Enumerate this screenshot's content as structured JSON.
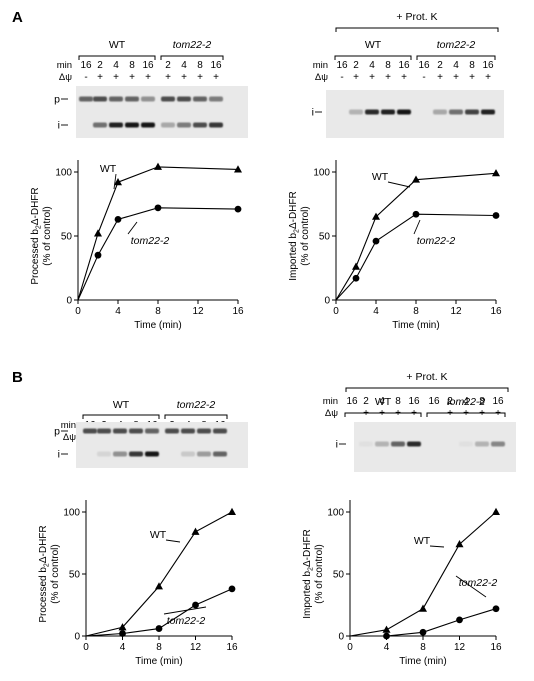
{
  "figure": {
    "panels": [
      {
        "letter": "A",
        "blots": [
          {
            "prot_k_label": "",
            "bands": [
              "p",
              "i"
            ],
            "row_labels": [
              "min",
              "Δψ"
            ],
            "groups": [
              {
                "label": "WT",
                "italic": false,
                "min": [
                  "16",
                  "2",
                  "4",
                  "8",
                  "16"
                ],
                "dpsi": [
                  "-",
                  "+",
                  "+",
                  "+",
                  "+"
                ]
              },
              {
                "label": "tom22-2",
                "italic": true,
                "min": [
                  "2",
                  "4",
                  "8",
                  "16"
                ],
                "dpsi": [
                  "+",
                  "+",
                  "+",
                  "+"
                ]
              }
            ],
            "band_p": [
              0.6,
              0.7,
              0.6,
              0.6,
              0.4,
              0.7,
              0.7,
              0.6,
              0.5
            ],
            "band_i": [
              0,
              0.55,
              0.9,
              0.95,
              0.95,
              0.3,
              0.5,
              0.7,
              0.8
            ]
          },
          {
            "prot_k_label": "+ Prot. K",
            "bands": [
              "i"
            ],
            "row_labels": [
              "min",
              "Δψ"
            ],
            "groups": [
              {
                "label": "WT",
                "italic": false,
                "min": [
                  "16",
                  "2",
                  "4",
                  "8",
                  "16"
                ],
                "dpsi": [
                  "-",
                  "+",
                  "+",
                  "+",
                  "+"
                ]
              },
              {
                "label": "tom22-2",
                "italic": true,
                "min": [
                  "16",
                  "2",
                  "4",
                  "8",
                  "16"
                ],
                "dpsi": [
                  "-",
                  "+",
                  "+",
                  "+",
                  "+"
                ]
              }
            ],
            "band_p": [],
            "band_i": [
              0,
              0.25,
              0.85,
              0.9,
              0.95,
              0,
              0.3,
              0.55,
              0.75,
              0.9
            ]
          }
        ],
        "charts": [
          {
            "ylabel_pre": "Processed b",
            "ylabel_sub": "2",
            "ylabel_post": "Δ-DHFR",
            "ylabel2": "(% of control)",
            "xlabel": "Time (min)"
          },
          {
            "ylabel_pre": "Imported b",
            "ylabel_sub": "2",
            "ylabel_post": "Δ-DHFR",
            "ylabel2": "(% of control)",
            "xlabel": "Time (min)"
          }
        ]
      },
      {
        "letter": "B",
        "blots": [
          {
            "prot_k_label": "",
            "bands": [
              "p",
              "i"
            ],
            "row_labels": [
              "min",
              "Δψ"
            ],
            "groups": [
              {
                "label": "WT",
                "italic": false,
                "min": [
                  "16",
                  "2",
                  "4",
                  "8",
                  "16"
                ],
                "dpsi": [
                  "-",
                  "+",
                  "+",
                  "+",
                  "+"
                ]
              },
              {
                "label": "tom22-2",
                "italic": true,
                "min": [
                  "2",
                  "4",
                  "8",
                  "16"
                ],
                "dpsi": [
                  "+",
                  "+",
                  "+",
                  "+"
                ]
              }
            ],
            "band_p": [
              0.7,
              0.7,
              0.7,
              0.7,
              0.6,
              0.7,
              0.7,
              0.7,
              0.7
            ],
            "band_i": [
              0,
              0.1,
              0.4,
              0.8,
              0.95,
              0,
              0.15,
              0.35,
              0.6
            ]
          },
          {
            "prot_k_label": "+ Prot. K",
            "bands": [
              "i"
            ],
            "row_labels": [
              "min",
              "Δψ"
            ],
            "groups": [
              {
                "label": "WT",
                "italic": false,
                "min": [
                  "16",
                  "2",
                  "4",
                  "8",
                  "16"
                ],
                "dpsi": [
                  "-",
                  "+",
                  "+",
                  "+",
                  "+"
                ]
              },
              {
                "label": "tom22-2",
                "italic": true,
                "min": [
                  "16",
                  "2",
                  "4",
                  "8",
                  "16"
                ],
                "dpsi": [
                  "-",
                  "+",
                  "+",
                  "+",
                  "+"
                ]
              }
            ],
            "band_p": [],
            "band_i": [
              0,
              0.05,
              0.25,
              0.6,
              0.85,
              0,
              0,
              0.05,
              0.25,
              0.45
            ]
          }
        ],
        "charts": [
          {
            "ylabel_pre": "Processed b",
            "ylabel_sub": "2",
            "ylabel_post": "Δ-DHFR",
            "ylabel2": "(% of control)",
            "xlabel": "Time (min)"
          },
          {
            "ylabel_pre": "Imported b",
            "ylabel_sub": "2",
            "ylabel_post": "Δ-DHFR",
            "ylabel2": "(% of control)",
            "xlabel": "Time (min)"
          }
        ]
      }
    ]
  },
  "chart_data": [
    {
      "type": "line",
      "panel": "A",
      "xlabel": "Time (min)",
      "ylabel": "Processed b2Δ-DHFR (% of control)",
      "xlim": [
        0,
        16
      ],
      "ylim": [
        0,
        100
      ],
      "xticks": [
        0,
        4,
        8,
        12,
        16
      ],
      "yticks": [
        0,
        50,
        100
      ],
      "series": [
        {
          "name": "WT",
          "marker": "triangle",
          "x": [
            2,
            4,
            8,
            16
          ],
          "y": [
            52,
            92,
            104,
            102
          ]
        },
        {
          "name": "tom22-2",
          "marker": "circle",
          "x": [
            2,
            4,
            8,
            16
          ],
          "y": [
            35,
            63,
            72,
            71
          ]
        }
      ]
    },
    {
      "type": "line",
      "panel": "A",
      "xlabel": "Time (min)",
      "ylabel": "Imported b2Δ-DHFR (% of control)",
      "xlim": [
        0,
        16
      ],
      "ylim": [
        0,
        100
      ],
      "xticks": [
        0,
        4,
        8,
        12,
        16
      ],
      "yticks": [
        0,
        50,
        100
      ],
      "series": [
        {
          "name": "WT",
          "marker": "triangle",
          "x": [
            2,
            4,
            8,
            16
          ],
          "y": [
            26,
            65,
            94,
            99
          ]
        },
        {
          "name": "tom22-2",
          "marker": "circle",
          "x": [
            2,
            4,
            8,
            16
          ],
          "y": [
            17,
            46,
            67,
            66
          ]
        }
      ]
    },
    {
      "type": "line",
      "panel": "B",
      "xlabel": "Time (min)",
      "ylabel": "Processed b2Δ-DHFR (% of control)",
      "xlim": [
        0,
        16
      ],
      "ylim": [
        0,
        100
      ],
      "xticks": [
        0,
        4,
        8,
        12,
        16
      ],
      "yticks": [
        0,
        50,
        100
      ],
      "series": [
        {
          "name": "WT",
          "marker": "triangle",
          "x": [
            4,
            8,
            12,
            16
          ],
          "y": [
            7,
            40,
            84,
            100
          ]
        },
        {
          "name": "tom22-2",
          "marker": "circle",
          "x": [
            4,
            8,
            12,
            16
          ],
          "y": [
            2,
            6,
            25,
            38
          ]
        }
      ]
    },
    {
      "type": "line",
      "panel": "B",
      "xlabel": "Time (min)",
      "ylabel": "Imported b2Δ-DHFR (% of control)",
      "xlim": [
        0,
        16
      ],
      "ylim": [
        0,
        100
      ],
      "xticks": [
        0,
        4,
        8,
        12,
        16
      ],
      "yticks": [
        0,
        50,
        100
      ],
      "series": [
        {
          "name": "WT",
          "marker": "triangle",
          "x": [
            4,
            8,
            12,
            16
          ],
          "y": [
            5,
            22,
            74,
            100
          ]
        },
        {
          "name": "tom22-2",
          "marker": "circle",
          "x": [
            4,
            8,
            12,
            16
          ],
          "y": [
            0,
            3,
            13,
            22
          ]
        }
      ]
    }
  ]
}
